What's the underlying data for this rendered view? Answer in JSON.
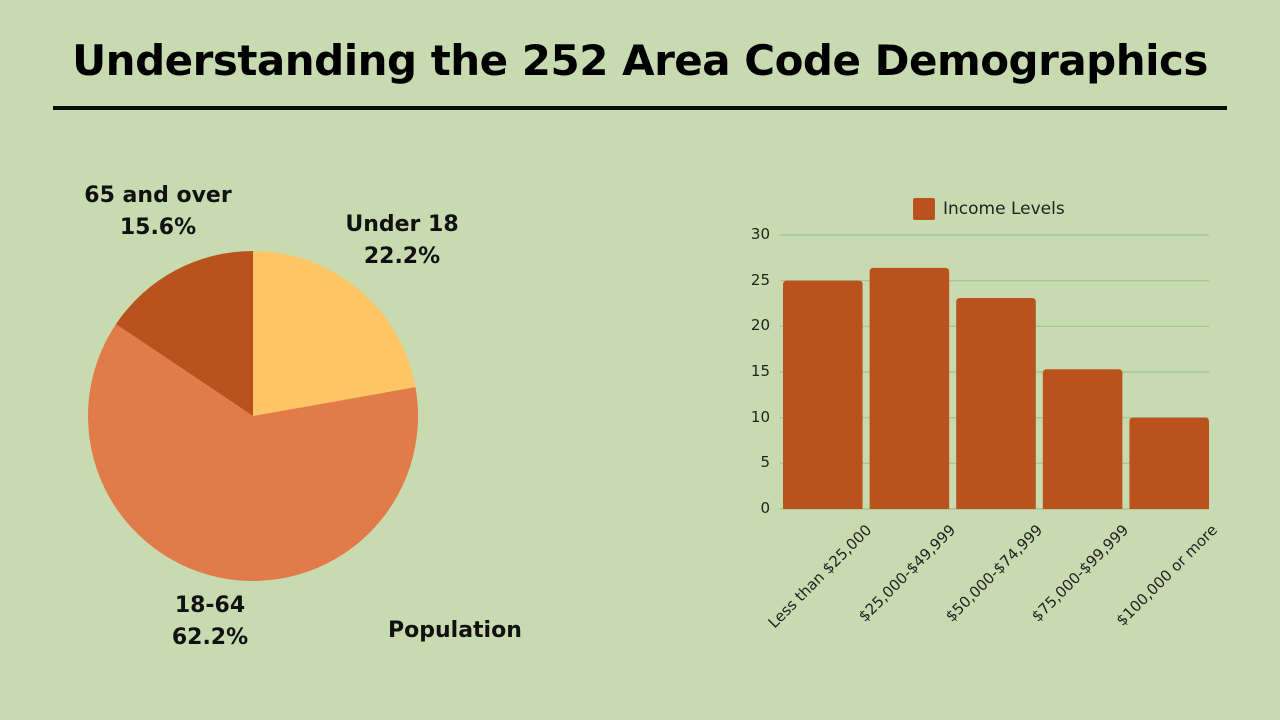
{
  "title": "Understanding the 252 Area Code Demographics",
  "colors": {
    "background": "#c8dbb0",
    "under18": "#fec564",
    "age18to64": "#e27b4a",
    "age65plus": "#ba521e",
    "bar": "#ba521e",
    "gridline": "#a9c08f"
  },
  "pie": {
    "caption": "Population",
    "slices": [
      {
        "label": "Under 18",
        "percent_text": "22.2%"
      },
      {
        "label": "18-64",
        "percent_text": "62.2%"
      },
      {
        "label": "65 and over",
        "percent_text": "15.6%"
      }
    ]
  },
  "bar": {
    "legend": "Income Levels",
    "yticks": [
      "0",
      "5",
      "10",
      "15",
      "20",
      "25",
      "30"
    ],
    "categories": [
      "Less than $25,000",
      "$25,000-$49,999",
      "$50,000-$74,999",
      "$75,000-$99,999",
      "$100,000 or more"
    ]
  },
  "chart_data": [
    {
      "type": "pie",
      "title": "Population",
      "categories": [
        "Under 18",
        "18-64",
        "65 and over"
      ],
      "values": [
        22.2,
        62.2,
        15.6
      ],
      "unit": "%",
      "colors": [
        "#fec564",
        "#e27b4a",
        "#ba521e"
      ],
      "start_angle": "12 o'clock, clockwise"
    },
    {
      "type": "bar",
      "title": "",
      "legend": [
        "Income Levels"
      ],
      "legend_position": "top",
      "categories": [
        "Less than $25,000",
        "$25,000-$49,999",
        "$50,000-$74,999",
        "$75,000-$99,999",
        "$100,000 or more"
      ],
      "series": [
        {
          "name": "Income Levels",
          "values": [
            25.0,
            26.4,
            23.1,
            15.3,
            10.0
          ]
        }
      ],
      "xlabel": "",
      "ylabel": "",
      "ylim": [
        0,
        30
      ],
      "yticks": [
        0,
        5,
        10,
        15,
        20,
        25,
        30
      ],
      "grid": true,
      "color": "#ba521e"
    }
  ]
}
